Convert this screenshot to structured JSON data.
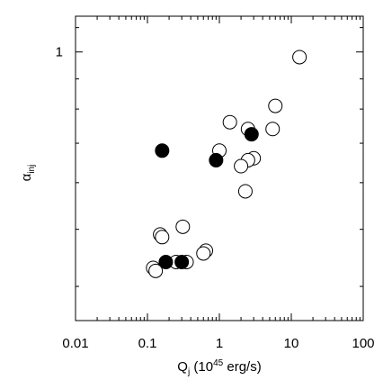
{
  "chart_data": {
    "type": "scatter",
    "xlabel": {
      "main": "Q",
      "sub": "j",
      "open": " (10",
      "sup": "45",
      "close": " erg/s)"
    },
    "ylabel": {
      "main": "α",
      "sub": "inj"
    },
    "x_scale": "log",
    "y_scale": "log",
    "xlim": [
      0.01,
      100
    ],
    "ylim": [
      0.35,
      1.15
    ],
    "x_tick_labels": [
      "0.01",
      "0.1",
      "1",
      "10",
      "100"
    ],
    "x_tick_values": [
      0.01,
      0.1,
      1,
      10,
      100
    ],
    "y_tick_labels": [
      "1"
    ],
    "y_tick_values": [
      1
    ],
    "grid": false,
    "legend": "none",
    "series": [
      {
        "marker": "open-circle",
        "color": "#000000",
        "points": [
          [
            13.0,
            0.98
          ],
          [
            6.0,
            0.81
          ],
          [
            5.5,
            0.74
          ],
          [
            1.4,
            0.76
          ],
          [
            2.5,
            0.74
          ],
          [
            1.0,
            0.68
          ],
          [
            3.0,
            0.66
          ],
          [
            2.5,
            0.655
          ],
          [
            2.0,
            0.64
          ],
          [
            2.3,
            0.58
          ],
          [
            0.15,
            0.49
          ],
          [
            0.16,
            0.485
          ],
          [
            0.31,
            0.505
          ],
          [
            0.65,
            0.46
          ],
          [
            0.6,
            0.455
          ],
          [
            0.35,
            0.44
          ],
          [
            0.25,
            0.44
          ],
          [
            0.12,
            0.43
          ],
          [
            0.13,
            0.425
          ]
        ]
      },
      {
        "marker": "filled-circle",
        "color": "#000000",
        "points": [
          [
            0.16,
            0.68
          ],
          [
            0.9,
            0.655
          ],
          [
            2.8,
            0.725
          ],
          [
            0.18,
            0.44
          ],
          [
            0.3,
            0.44
          ]
        ]
      }
    ]
  }
}
